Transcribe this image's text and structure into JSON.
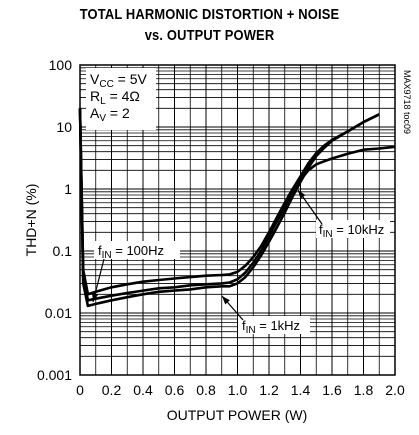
{
  "chart_data": {
    "type": "line",
    "title_line1": "TOTAL HARMONIC DISTORTION + NOISE",
    "title_line2": "vs. OUTPUT POWER",
    "xlabel": "OUTPUT POWER (W)",
    "ylabel": "THD+N (%)",
    "xlim": [
      0,
      2.0
    ],
    "ylim": [
      0.001,
      100
    ],
    "yscale": "log",
    "grid": true,
    "x_tick_labels": [
      "0",
      "0.2",
      "0.4",
      "0.6",
      "0.8",
      "1.0",
      "1.2",
      "1.4",
      "1.6",
      "1.8",
      "2.0"
    ],
    "y_tick_labels": [
      "100",
      "10",
      "1",
      "0.1",
      "0.01",
      "0.001"
    ],
    "conditions": [
      {
        "main": "V",
        "sub": "CC",
        "rest": " = 5V"
      },
      {
        "main": "R",
        "sub": "L",
        "rest": " = 4Ω"
      },
      {
        "main": "A",
        "sub": "V",
        "rest": " = 2"
      }
    ],
    "watermark": "MAX9718 toc09",
    "series": [
      {
        "label_main": "f",
        "label_sub": "IN",
        "label_rest": " = 100Hz",
        "x": [
          0.0,
          0.02,
          0.05,
          0.1,
          0.2,
          0.3,
          0.4,
          0.5,
          0.6,
          0.7,
          0.8,
          0.9,
          0.95,
          1.0,
          1.05,
          1.1,
          1.15,
          1.2,
          1.25,
          1.3,
          1.35,
          1.4,
          1.45,
          1.5,
          1.55,
          1.6,
          1.7,
          1.8,
          1.9
        ],
        "y": [
          20,
          0.05,
          0.02,
          0.022,
          0.026,
          0.029,
          0.032,
          0.034,
          0.036,
          0.038,
          0.04,
          0.041,
          0.042,
          0.046,
          0.058,
          0.08,
          0.12,
          0.2,
          0.35,
          0.6,
          1.0,
          1.6,
          2.6,
          3.8,
          5.0,
          6.2,
          8.5,
          12,
          16
        ]
      },
      {
        "label_main": "f",
        "label_sub": "IN",
        "label_rest": " = 1kHz",
        "x": [
          0.0,
          0.02,
          0.05,
          0.1,
          0.2,
          0.3,
          0.4,
          0.5,
          0.6,
          0.7,
          0.8,
          0.9,
          0.95,
          1.0,
          1.05,
          1.1,
          1.15,
          1.2,
          1.25,
          1.3,
          1.35,
          1.4,
          1.45,
          1.5,
          1.55,
          1.6,
          1.7,
          1.8,
          1.9
        ],
        "y": [
          20,
          0.03,
          0.013,
          0.014,
          0.016,
          0.018,
          0.02,
          0.022,
          0.023,
          0.024,
          0.026,
          0.027,
          0.027,
          0.03,
          0.038,
          0.055,
          0.085,
          0.14,
          0.24,
          0.42,
          0.75,
          1.3,
          2.2,
          3.4,
          4.6,
          6.0,
          8.5,
          12,
          16
        ]
      },
      {
        "label_main": "f",
        "label_sub": "IN",
        "label_rest": " = 10kHz",
        "x": [
          0.0,
          0.02,
          0.05,
          0.1,
          0.2,
          0.3,
          0.4,
          0.5,
          0.6,
          0.7,
          0.8,
          0.9,
          0.95,
          1.0,
          1.05,
          1.1,
          1.15,
          1.2,
          1.25,
          1.3,
          1.35,
          1.4,
          1.45,
          1.5,
          1.55,
          1.6,
          1.7,
          1.8,
          1.9,
          2.0
        ],
        "y": [
          20,
          0.04,
          0.016,
          0.017,
          0.019,
          0.021,
          0.023,
          0.025,
          0.026,
          0.028,
          0.029,
          0.03,
          0.031,
          0.035,
          0.045,
          0.065,
          0.1,
          0.17,
          0.3,
          0.5,
          0.85,
          1.4,
          2.0,
          2.5,
          2.8,
          3.1,
          3.7,
          4.3,
          4.5,
          4.8
        ]
      }
    ]
  }
}
